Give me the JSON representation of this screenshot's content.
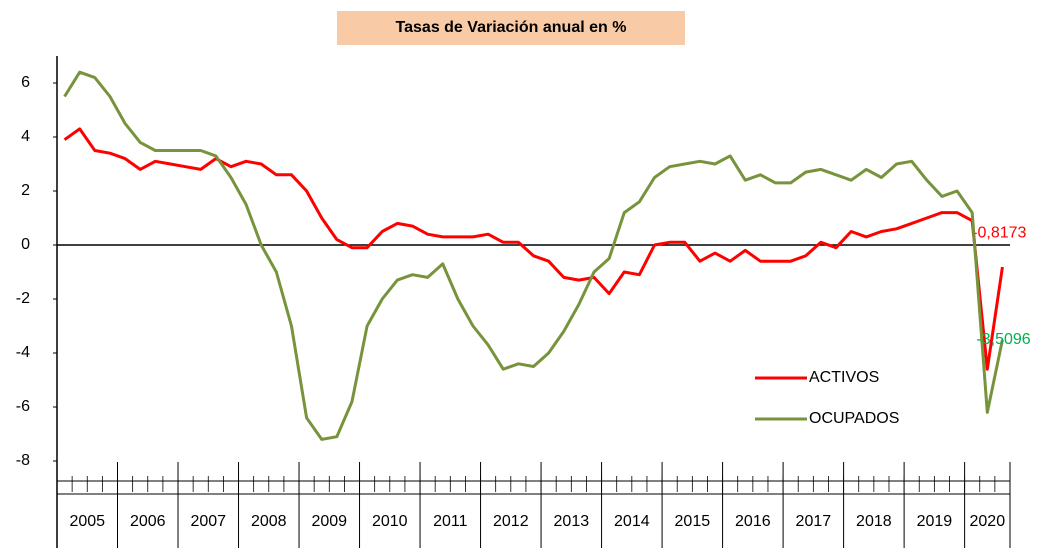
{
  "chart_data": {
    "type": "line",
    "title": "Tasas de Variación anual en %",
    "categories": [
      "2005",
      null,
      null,
      null,
      "2006",
      null,
      null,
      null,
      "2007",
      null,
      null,
      null,
      "2008",
      null,
      null,
      null,
      "2009",
      null,
      null,
      null,
      "2010",
      null,
      null,
      null,
      "2011",
      null,
      null,
      null,
      "2012",
      null,
      null,
      null,
      "2013",
      null,
      null,
      null,
      "2014",
      null,
      null,
      null,
      "2015",
      null,
      null,
      null,
      "2016",
      null,
      null,
      null,
      "2017",
      null,
      null,
      null,
      "2018",
      null,
      null,
      null,
      "2019",
      null,
      null,
      null,
      "2020",
      null,
      null
    ],
    "series": [
      {
        "name": "ACTIVOS",
        "color": "#ff0000",
        "values": [
          3.9,
          4.3,
          3.5,
          3.4,
          3.2,
          2.8,
          3.1,
          3.0,
          2.9,
          2.8,
          3.2,
          2.9,
          3.1,
          3.0,
          2.6,
          2.6,
          2.0,
          1.0,
          0.2,
          -0.1,
          -0.1,
          0.5,
          0.8,
          0.7,
          0.4,
          0.3,
          0.3,
          0.3,
          0.4,
          0.1,
          0.1,
          -0.4,
          -0.6,
          -1.2,
          -1.3,
          -1.2,
          -1.8,
          -1.0,
          -1.1,
          0.0,
          0.1,
          0.1,
          -0.6,
          -0.3,
          -0.6,
          -0.2,
          -0.6,
          -0.6,
          -0.6,
          -0.4,
          0.1,
          -0.1,
          0.5,
          0.3,
          0.5,
          0.6,
          0.8,
          1.0,
          1.2,
          1.2,
          0.9,
          -4.6,
          -0.8173
        ],
        "value_labels": [
          null,
          null,
          null,
          null,
          null,
          null,
          null,
          null,
          null,
          null,
          null,
          null,
          null,
          null,
          null,
          null,
          null,
          null,
          null,
          null,
          null,
          null,
          null,
          null,
          null,
          null,
          null,
          null,
          null,
          null,
          null,
          null,
          null,
          null,
          null,
          null,
          null,
          null,
          null,
          null,
          null,
          null,
          null,
          null,
          null,
          null,
          null,
          null,
          null,
          null,
          null,
          null,
          null,
          null,
          null,
          null,
          null,
          null,
          null,
          null,
          null,
          null,
          "-0,8173"
        ],
        "label_color": "#ff0000"
      },
      {
        "name": "OCUPADOS",
        "color": "#77933c",
        "values": [
          5.5,
          6.4,
          6.2,
          5.5,
          4.5,
          3.8,
          3.5,
          3.5,
          3.5,
          3.5,
          3.3,
          2.5,
          1.5,
          0.0,
          -1.0,
          -3.0,
          -6.4,
          -7.2,
          -7.1,
          -5.8,
          -3.0,
          -2.0,
          -1.3,
          -1.1,
          -1.2,
          -0.7,
          -2.0,
          -3.0,
          -3.7,
          -4.6,
          -4.4,
          -4.5,
          -4.0,
          -3.2,
          -2.2,
          -1.0,
          -0.5,
          1.2,
          1.6,
          2.5,
          2.9,
          3.0,
          3.1,
          3.0,
          3.3,
          2.4,
          2.6,
          2.3,
          2.3,
          2.7,
          2.8,
          2.6,
          2.4,
          2.8,
          2.5,
          3.0,
          3.1,
          2.4,
          1.8,
          2.0,
          1.2,
          -6.2,
          -3.5096
        ],
        "value_labels": [
          null,
          null,
          null,
          null,
          null,
          null,
          null,
          null,
          null,
          null,
          null,
          null,
          null,
          null,
          null,
          null,
          null,
          null,
          null,
          null,
          null,
          null,
          null,
          null,
          null,
          null,
          null,
          null,
          null,
          null,
          null,
          null,
          null,
          null,
          null,
          null,
          null,
          null,
          null,
          null,
          null,
          null,
          null,
          null,
          null,
          null,
          null,
          null,
          null,
          null,
          null,
          null,
          null,
          null,
          null,
          null,
          null,
          null,
          null,
          null,
          null,
          null,
          "-3,5096"
        ],
        "label_color": "#00b050"
      }
    ],
    "ylim": [
      -8,
      7
    ],
    "yticks": [
      -8,
      -6,
      -4,
      -2,
      0,
      2,
      4,
      6
    ],
    "title_background": "#f8cba6"
  }
}
